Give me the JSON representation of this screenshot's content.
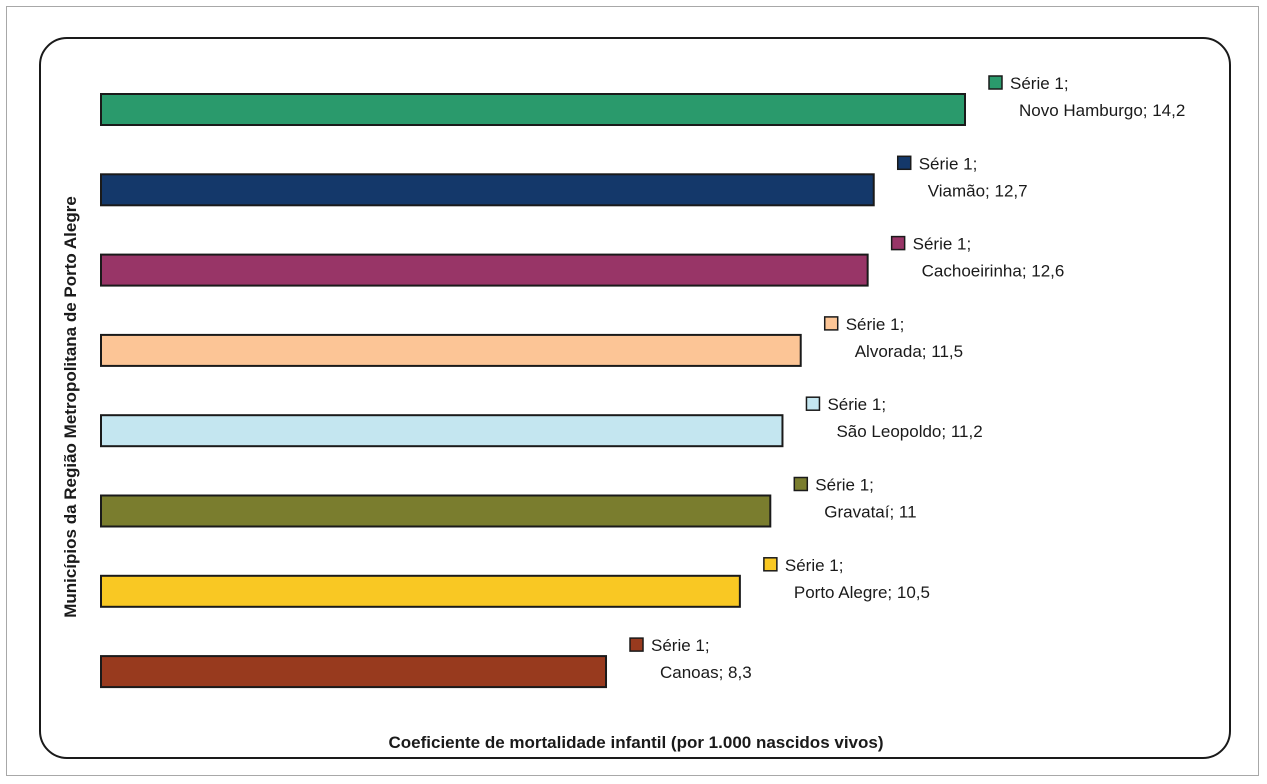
{
  "chart_data": {
    "type": "bar",
    "orientation": "horizontal",
    "xlabel": "Coeficiente de mortalidade infantil (por 1.000 nascidos vivos)",
    "ylabel": "Municípios da Região Metropolitana de Porto Alegre",
    "xlim": [
      0,
      14.2
    ],
    "grid": false,
    "series": [
      {
        "name": "Série 1",
        "points": [
          {
            "category": "Novo Hamburgo",
            "value": 14.2,
            "value_label": "14,2",
            "color": "#2a9a6c"
          },
          {
            "category": "Viamão",
            "value": 12.7,
            "value_label": "12,7",
            "color": "#14386a"
          },
          {
            "category": "Cachoeirinha",
            "value": 12.6,
            "value_label": "12,6",
            "color": "#983567"
          },
          {
            "category": "Alvorada",
            "value": 11.5,
            "value_label": "11,5",
            "color": "#fcc596"
          },
          {
            "category": "São Leopoldo",
            "value": 11.2,
            "value_label": "11,2",
            "color": "#c4e6f0"
          },
          {
            "category": "Gravataí",
            "value": 11,
            "value_label": "11",
            "color": "#7a7d2e"
          },
          {
            "category": "Porto Alegre",
            "value": 10.5,
            "value_label": "10,5",
            "color": "#f9c823"
          },
          {
            "category": "Canoas",
            "value": 8.3,
            "value_label": "8,3",
            "color": "#983a1e"
          }
        ]
      }
    ]
  }
}
